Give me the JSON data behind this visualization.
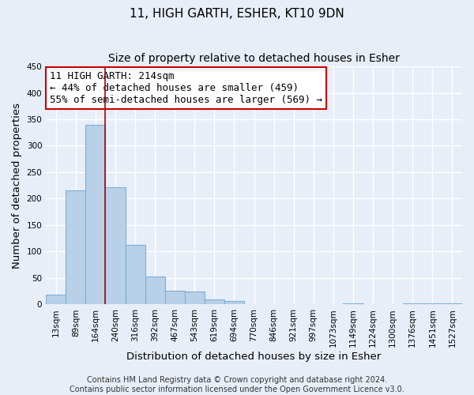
{
  "title": "11, HIGH GARTH, ESHER, KT10 9DN",
  "subtitle": "Size of property relative to detached houses in Esher",
  "xlabel": "Distribution of detached houses by size in Esher",
  "ylabel": "Number of detached properties",
  "categories": [
    "13sqm",
    "89sqm",
    "164sqm",
    "240sqm",
    "316sqm",
    "392sqm",
    "467sqm",
    "543sqm",
    "619sqm",
    "694sqm",
    "770sqm",
    "846sqm",
    "921sqm",
    "997sqm",
    "1073sqm",
    "1149sqm",
    "1224sqm",
    "1300sqm",
    "1376sqm",
    "1451sqm",
    "1527sqm"
  ],
  "values": [
    18,
    215,
    340,
    222,
    113,
    53,
    26,
    25,
    10,
    7,
    0,
    0,
    0,
    0,
    0,
    2,
    0,
    0,
    2,
    2,
    2
  ],
  "bar_color": "#b8d0e8",
  "bar_edge_color": "#7bafd4",
  "vline_color": "#aa0000",
  "vline_x_index": 2.5,
  "annotation_text": "11 HIGH GARTH: 214sqm\n← 44% of detached houses are smaller (459)\n55% of semi-detached houses are larger (569) →",
  "annotation_box_color": "#ffffff",
  "annotation_box_edge": "#cc0000",
  "ylim": [
    0,
    450
  ],
  "yticks": [
    0,
    50,
    100,
    150,
    200,
    250,
    300,
    350,
    400,
    450
  ],
  "footer": "Contains HM Land Registry data © Crown copyright and database right 2024.\nContains public sector information licensed under the Open Government Licence v3.0.",
  "background_color": "#e8eef8",
  "plot_bg_color": "#e8eef8",
  "grid_color": "#ffffff",
  "title_fontsize": 11,
  "subtitle_fontsize": 10,
  "axis_label_fontsize": 9.5,
  "tick_fontsize": 7.5,
  "footer_fontsize": 7,
  "annotation_fontsize": 9
}
